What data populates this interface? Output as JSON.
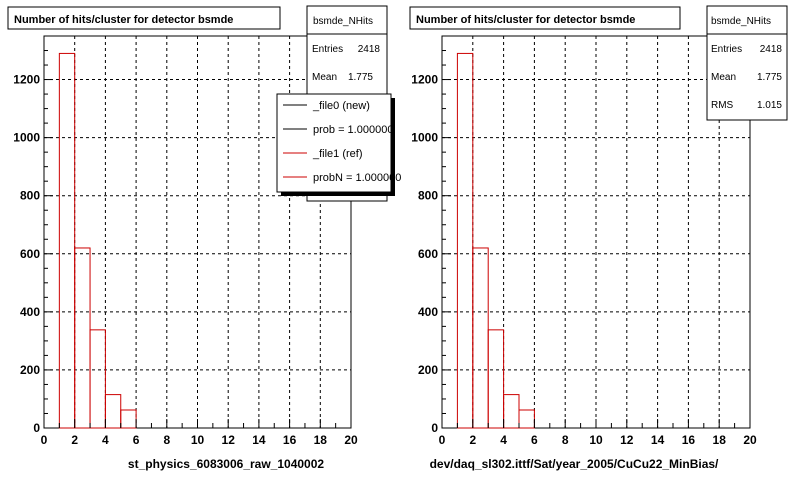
{
  "chart_data": [
    {
      "type": "bar",
      "title": "Number of hits/cluster for detector bsmde",
      "xlabel": "st_physics_6083006_raw_1040002",
      "xlim": [
        0,
        20
      ],
      "ylim": [
        0,
        1350
      ],
      "xticks": [
        0,
        2,
        4,
        6,
        8,
        10,
        12,
        14,
        16,
        18,
        20
      ],
      "yticks": [
        0,
        200,
        400,
        600,
        800,
        1000,
        1200
      ],
      "grid": true,
      "stats": {
        "name": "bsmde_NHits",
        "entries_label": "Entries",
        "entries": "2418",
        "mean_label": "Mean",
        "mean": "1.775"
      },
      "legend": {
        "placement": "top-right",
        "entries": [
          {
            "text": "_file0 (new)",
            "color": "#000000"
          },
          {
            "text": "prob = 1.000000",
            "color": "#000000"
          },
          {
            "text": "_file1 (ref)",
            "color": "#cc0000"
          },
          {
            "text": "probN = 1.000000",
            "color": "#cc0000"
          }
        ]
      },
      "series": [
        {
          "color": "#cc0000",
          "bin_edges": [
            1,
            2,
            3,
            4,
            5,
            6
          ],
          "values": [
            1290,
            620,
            338,
            115,
            62
          ]
        }
      ]
    },
    {
      "type": "bar",
      "title": "Number of hits/cluster for detector bsmde",
      "xlabel": "dev/daq_sl302.ittf/Sat/year_2005/CuCu22_MinBias/",
      "xlim": [
        0,
        20
      ],
      "ylim": [
        0,
        1350
      ],
      "xticks": [
        0,
        2,
        4,
        6,
        8,
        10,
        12,
        14,
        16,
        18,
        20
      ],
      "yticks": [
        0,
        200,
        400,
        600,
        800,
        1000,
        1200
      ],
      "grid": true,
      "stats": {
        "name": "bsmde_NHits",
        "entries_label": "Entries",
        "entries": "2418",
        "mean_label": "Mean",
        "mean": "1.775",
        "rms_label": "RMS",
        "rms": "1.015"
      },
      "series": [
        {
          "color": "#cc0000",
          "bin_edges": [
            1,
            2,
            3,
            4,
            5,
            6
          ],
          "values": [
            1290,
            620,
            338,
            115,
            62
          ]
        }
      ]
    }
  ]
}
